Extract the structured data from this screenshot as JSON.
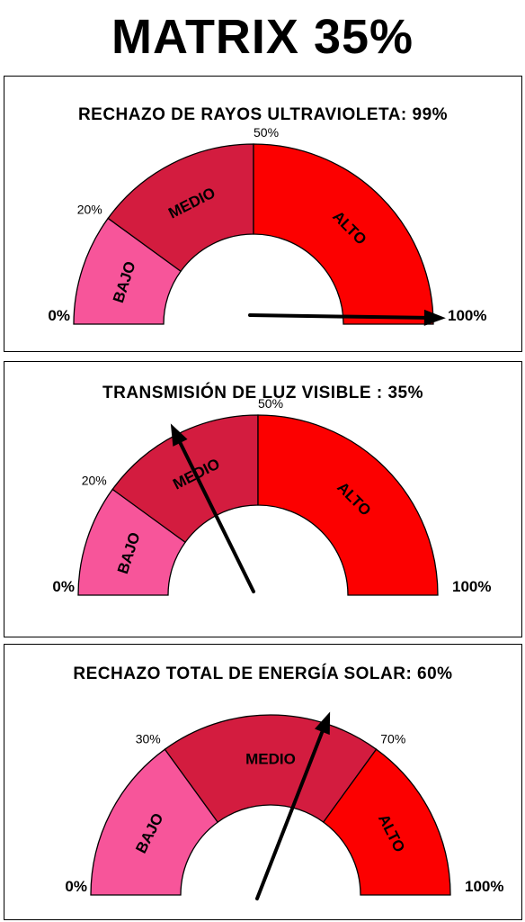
{
  "title": "MATRIX 35%",
  "colors": {
    "low": "#f7559a",
    "mid": "#d31c3f",
    "high": "#fc0000",
    "needle": "#000000"
  },
  "chart_data": [
    {
      "type": "gauge",
      "title": "RECHAZO DE RAYOS ULTRAVIOLETA: 99%",
      "value": 99,
      "range": [
        0,
        100
      ],
      "bands": [
        {
          "label": "BAJO",
          "from": 0,
          "to": 20
        },
        {
          "label": "MEDIO",
          "from": 20,
          "to": 50
        },
        {
          "label": "ALTO",
          "from": 50,
          "to": 100
        }
      ],
      "tick_labels": [
        "0%",
        "20%",
        "50%",
        "100%"
      ]
    },
    {
      "type": "gauge",
      "title": "TRANSMISIÓN DE LUZ VISIBLE : 35%",
      "value": 35,
      "range": [
        0,
        100
      ],
      "bands": [
        {
          "label": "BAJO",
          "from": 0,
          "to": 20
        },
        {
          "label": "MEDIO",
          "from": 20,
          "to": 50
        },
        {
          "label": "ALTO",
          "from": 50,
          "to": 100
        }
      ],
      "tick_labels": [
        "0%",
        "20%",
        "50%",
        "100%"
      ]
    },
    {
      "type": "gauge",
      "title": "RECHAZO TOTAL DE ENERGÍA SOLAR: 60%",
      "value": 60,
      "range": [
        0,
        100
      ],
      "bands": [
        {
          "label": "BAJO",
          "from": 0,
          "to": 30
        },
        {
          "label": "MEDIO",
          "from": 30,
          "to": 70
        },
        {
          "label": "ALTO",
          "from": 70,
          "to": 100
        }
      ],
      "tick_labels": [
        "0%",
        "30%",
        "70%",
        "100%"
      ]
    }
  ]
}
